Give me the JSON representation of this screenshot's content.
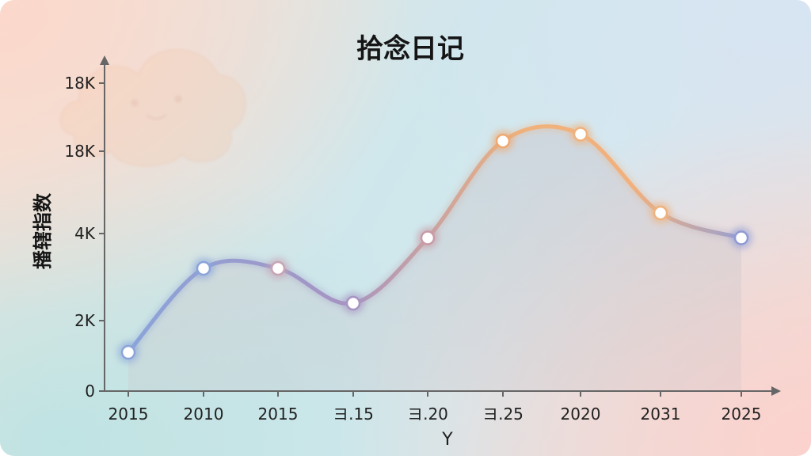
{
  "chart_data": {
    "type": "line",
    "title": "拾念日记",
    "xlabel": "Y",
    "ylabel": "播辖指数",
    "categories": [
      "2015",
      "2010",
      "2015",
      "ヨ.15",
      "ヨ.20",
      "ヨ.25",
      "2020",
      "2031",
      "2025"
    ],
    "y_tick_labels": [
      "0",
      "2K",
      "4K",
      "18K",
      "18K"
    ],
    "values": [
      1.1,
      3.2,
      3.2,
      2.4,
      3.9,
      6.3,
      6.5,
      4.5,
      3.9
    ],
    "ylim": [
      0,
      8.2
    ],
    "grid": false,
    "legend": "none",
    "colors": {
      "line_start": "#8aa4da",
      "line_mid": "#a694c2",
      "line_peak": "#f0b27c",
      "line_end": "#9aa0d0",
      "point_fill": "#ffffff",
      "axis": "#666666",
      "area_fill": "#c9c3c9"
    }
  }
}
